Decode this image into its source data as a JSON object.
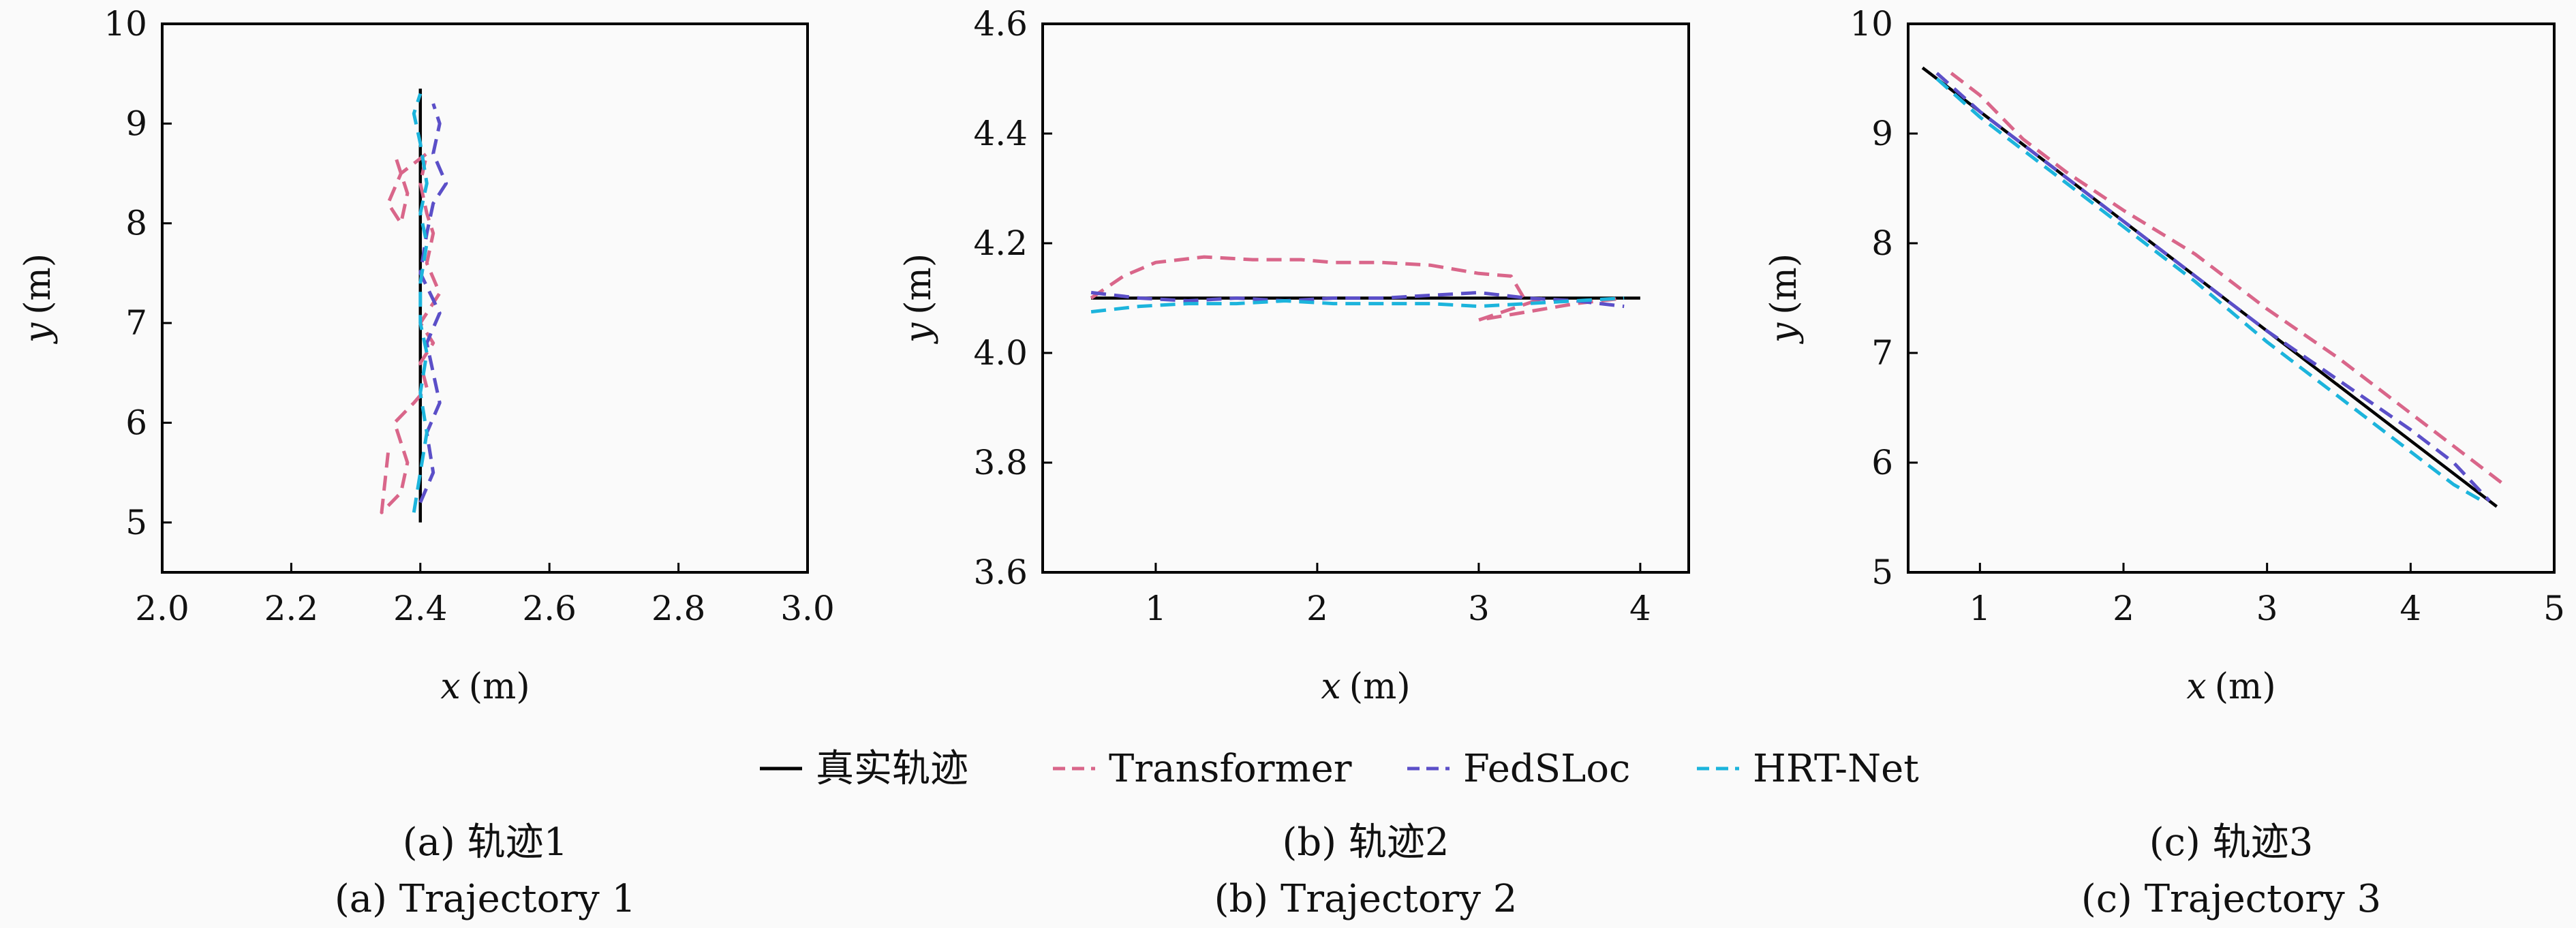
{
  "legend": [
    {
      "name": "真实轨迹",
      "color": "#000000",
      "dash": "solid"
    },
    {
      "name": "Transformer",
      "color": "#d9668a",
      "dash": "dashed"
    },
    {
      "name": "FedSLoc",
      "color": "#5b4fc8",
      "dash": "dashed"
    },
    {
      "name": "HRT-Net",
      "color": "#1cb4dc",
      "dash": "dashed"
    }
  ],
  "chart_data": [
    {
      "type": "line",
      "caption_cn": "(a) 轨迹1",
      "caption_en": "(a) Trajectory 1",
      "xlabel_var": "x",
      "xlabel_unit": "(m)",
      "ylabel_var": "y",
      "ylabel_unit": "(m)",
      "xlim": [
        2.0,
        3.0
      ],
      "ylim": [
        4.5,
        10
      ],
      "xticks": [
        "2.0",
        "2.2",
        "2.4",
        "2.6",
        "2.8",
        "3.0"
      ],
      "yticks": [
        "5",
        "6",
        "7",
        "8",
        "9",
        "10"
      ],
      "series": [
        {
          "name": "真实轨迹",
          "x": [
            2.4,
            2.4
          ],
          "y": [
            5.0,
            9.35
          ]
        },
        {
          "name": "Transformer",
          "x": [
            2.35,
            2.34,
            2.37,
            2.38,
            2.36,
            2.39,
            2.41,
            2.4,
            2.42,
            2.4,
            2.43,
            2.41,
            2.42,
            2.41,
            2.4,
            2.41,
            2.37,
            2.35,
            2.37,
            2.38,
            2.36
          ],
          "y": [
            5.7,
            5.1,
            5.3,
            5.6,
            6.0,
            6.2,
            6.35,
            6.6,
            6.8,
            7.0,
            7.3,
            7.6,
            7.9,
            8.1,
            8.4,
            8.7,
            8.5,
            8.2,
            8.0,
            8.3,
            8.7
          ]
        },
        {
          "name": "FedSLoc",
          "x": [
            2.4,
            2.42,
            2.41,
            2.43,
            2.42,
            2.41,
            2.43,
            2.4,
            2.41,
            2.42,
            2.44,
            2.42,
            2.43,
            2.42
          ],
          "y": [
            5.2,
            5.5,
            5.9,
            6.2,
            6.5,
            6.8,
            7.1,
            7.5,
            7.9,
            8.2,
            8.4,
            8.7,
            9.0,
            9.2
          ]
        },
        {
          "name": "HRT-Net",
          "x": [
            2.39,
            2.4,
            2.41,
            2.4,
            2.41,
            2.4,
            2.4,
            2.41,
            2.4,
            2.41,
            2.4,
            2.39,
            2.4
          ],
          "y": [
            5.1,
            5.5,
            5.9,
            6.3,
            6.7,
            7.0,
            7.4,
            7.8,
            8.1,
            8.4,
            8.8,
            9.1,
            9.3
          ]
        }
      ]
    },
    {
      "type": "line",
      "caption_cn": "(b) 轨迹2",
      "caption_en": "(b) Trajectory 2",
      "xlabel_var": "x",
      "xlabel_unit": "(m)",
      "ylabel_var": "y",
      "ylabel_unit": "(m)",
      "xlim": [
        0.3,
        4.3
      ],
      "ylim": [
        3.6,
        4.6
      ],
      "xticks": [
        "1",
        "2",
        "3",
        "4"
      ],
      "xtick_values": [
        1,
        2,
        3,
        4
      ],
      "yticks": [
        "3.6",
        "3.8",
        "4.0",
        "4.2",
        "4.4",
        "4.6"
      ],
      "series": [
        {
          "name": "真实轨迹",
          "x": [
            0.6,
            4.0
          ],
          "y": [
            4.1,
            4.1
          ]
        },
        {
          "name": "Transformer",
          "x": [
            0.6,
            0.8,
            1.0,
            1.3,
            1.6,
            1.9,
            2.1,
            2.4,
            2.7,
            3.0,
            3.2,
            3.3,
            3.4,
            3.0,
            3.6,
            3.9
          ],
          "y": [
            4.1,
            4.14,
            4.165,
            4.175,
            4.17,
            4.17,
            4.165,
            4.165,
            4.16,
            4.145,
            4.14,
            4.09,
            4.1,
            4.06,
            4.09,
            4.1
          ]
        },
        {
          "name": "FedSLoc",
          "x": [
            0.6,
            0.9,
            1.2,
            1.5,
            1.8,
            2.1,
            2.4,
            2.7,
            3.0,
            3.3,
            3.6,
            3.9
          ],
          "y": [
            4.11,
            4.1,
            4.095,
            4.1,
            4.095,
            4.1,
            4.1,
            4.105,
            4.11,
            4.1,
            4.095,
            4.085
          ]
        },
        {
          "name": "HRT-Net",
          "x": [
            0.6,
            0.9,
            1.2,
            1.5,
            1.8,
            2.1,
            2.4,
            2.7,
            3.0,
            3.3,
            3.6,
            3.9
          ],
          "y": [
            4.075,
            4.085,
            4.09,
            4.09,
            4.095,
            4.09,
            4.09,
            4.09,
            4.085,
            4.09,
            4.095,
            4.1
          ]
        }
      ]
    },
    {
      "type": "line",
      "caption_cn": "(c) 轨迹3",
      "caption_en": "(c) Trajectory 3",
      "xlabel_var": "x",
      "xlabel_unit": "(m)",
      "ylabel_var": "y",
      "ylabel_unit": "(m)",
      "xlim": [
        0.5,
        5
      ],
      "ylim": [
        5,
        10
      ],
      "xticks": [
        "1",
        "2",
        "3",
        "4",
        "5"
      ],
      "xtick_values": [
        1,
        2,
        3,
        4,
        5
      ],
      "yticks": [
        "5",
        "6",
        "7",
        "8",
        "9",
        "10"
      ],
      "series": [
        {
          "name": "真实轨迹",
          "x": [
            0.6,
            4.6
          ],
          "y": [
            9.6,
            5.6
          ]
        },
        {
          "name": "Transformer",
          "x": [
            0.8,
            1.0,
            1.3,
            1.6,
            2.0,
            2.5,
            3.0,
            3.5,
            4.0,
            4.3,
            4.65
          ],
          "y": [
            9.55,
            9.35,
            8.95,
            8.65,
            8.3,
            7.9,
            7.4,
            6.95,
            6.45,
            6.15,
            5.8
          ]
        },
        {
          "name": "FedSLoc",
          "x": [
            0.7,
            1.0,
            1.5,
            2.0,
            2.5,
            3.0,
            3.5,
            4.0,
            4.3,
            4.55
          ],
          "y": [
            9.55,
            9.2,
            8.7,
            8.2,
            7.7,
            7.2,
            6.75,
            6.3,
            6.0,
            5.65
          ]
        },
        {
          "name": "HRT-Net",
          "x": [
            0.7,
            1.0,
            1.5,
            2.0,
            2.5,
            3.0,
            3.5,
            4.0,
            4.3,
            4.5
          ],
          "y": [
            9.5,
            9.15,
            8.65,
            8.15,
            7.65,
            7.1,
            6.6,
            6.1,
            5.8,
            5.65
          ]
        }
      ]
    }
  ]
}
